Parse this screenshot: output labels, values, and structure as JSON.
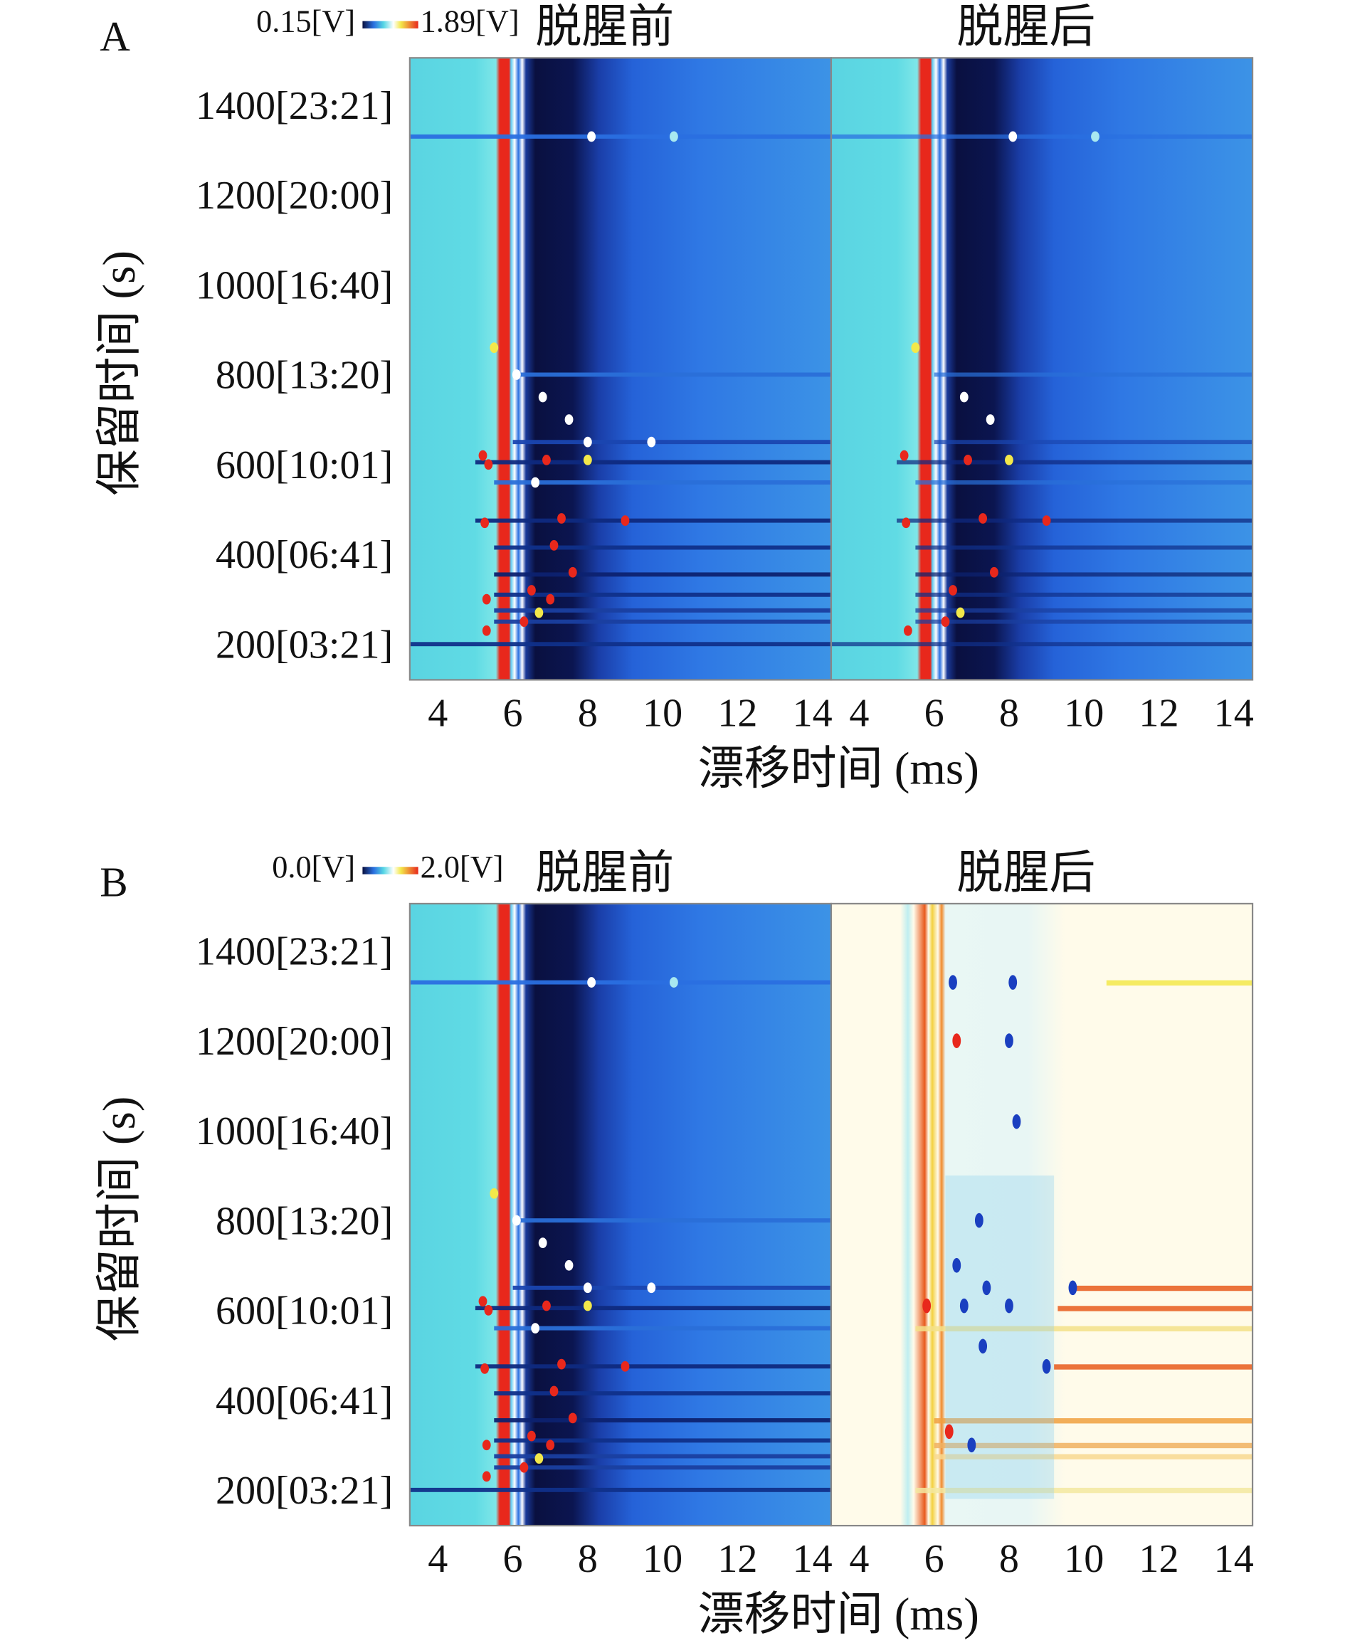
{
  "chart_data": {
    "type": "heatmap",
    "xlabel": "漂移时间 (ms)",
    "ylabel": "保留时间 (s)",
    "xlim": [
      3.25,
      14.5
    ],
    "ylim": [
      120,
      1505
    ],
    "xticks": [
      "4",
      "6",
      "8",
      "10",
      "12",
      "14"
    ],
    "yticks": [
      {
        "value": 200,
        "label": "200[03:21]"
      },
      {
        "value": 400,
        "label": "400[06:41]"
      },
      {
        "value": 600,
        "label": "600[10:01]"
      },
      {
        "value": 800,
        "label": "800[13:20]"
      },
      {
        "value": 1000,
        "label": "1000[16:40]"
      },
      {
        "value": 1200,
        "label": "1200[20:00]"
      },
      {
        "value": 1400,
        "label": "1400[23:21]"
      }
    ],
    "colors": {
      "low": "#0a0f3c",
      "mid": "#2a6fe0",
      "cyan": "#56d6e4",
      "high": "#e8281c",
      "yellow": "#f3e84a",
      "cream": "#fffbea"
    },
    "panels": [
      {
        "label": "A",
        "colorbar": {
          "min": "0.15[V]",
          "max": "1.89[V]"
        },
        "subplots": [
          {
            "title": "脱腥前",
            "mode": "spectrum",
            "intensity": 1.0
          },
          {
            "title": "脱腥后",
            "mode": "spectrum",
            "intensity": 0.7
          }
        ]
      },
      {
        "label": "B",
        "colorbar": {
          "min": "0.0[V]",
          "max": "2.0[V]"
        },
        "subplots": [
          {
            "title": "脱腥前",
            "mode": "spectrum",
            "intensity": 1.0
          },
          {
            "title": "脱腥后",
            "mode": "difference",
            "intensity": 1.0
          }
        ]
      }
    ],
    "peaks_spectrum": [
      [
        5.2,
        620,
        "#e8281c"
      ],
      [
        5.35,
        600,
        "#e8281c"
      ],
      [
        5.25,
        470,
        "#e8281c"
      ],
      [
        5.5,
        860,
        "#f3e84a"
      ],
      [
        6.1,
        800,
        "#ffffff"
      ],
      [
        6.9,
        610,
        "#e8281c"
      ],
      [
        7.3,
        480,
        "#e8281c"
      ],
      [
        7.1,
        420,
        "#e8281c"
      ],
      [
        8.0,
        610,
        "#f3e84a"
      ],
      [
        9.0,
        475,
        "#e8281c"
      ],
      [
        9.7,
        650,
        "#ffffff"
      ],
      [
        7.6,
        360,
        "#e8281c"
      ],
      [
        6.5,
        320,
        "#e8281c"
      ],
      [
        7.0,
        300,
        "#e8281c"
      ],
      [
        8.1,
        1330,
        "#ffffff"
      ],
      [
        10.3,
        1330,
        "#a8e8f0"
      ],
      [
        6.6,
        560,
        "#ffffff"
      ],
      [
        7.5,
        700,
        "#ffffff"
      ],
      [
        6.8,
        750,
        "#ffffff"
      ],
      [
        8.0,
        650,
        "#ffffff"
      ],
      [
        6.3,
        250,
        "#e8281c"
      ],
      [
        6.7,
        270,
        "#f3e84a"
      ],
      [
        5.3,
        300,
        "#e8281c"
      ],
      [
        5.3,
        230,
        "#e8281c"
      ]
    ],
    "streaks_spectrum": [
      [
        200,
        3.25,
        14.5,
        "#10308a"
      ],
      [
        605,
        5.0,
        14.5,
        "#0f2a80"
      ],
      [
        650,
        6.0,
        14.5,
        "#1a46b0"
      ],
      [
        475,
        5.0,
        14.5,
        "#0f2a80"
      ],
      [
        415,
        5.5,
        14.5,
        "#10308a"
      ],
      [
        355,
        5.5,
        14.5,
        "#0d2270"
      ],
      [
        310,
        5.5,
        14.5,
        "#10308a"
      ],
      [
        275,
        5.5,
        14.5,
        "#1a3fa0"
      ],
      [
        1330,
        3.25,
        14.5,
        "#2a6fe0"
      ],
      [
        800,
        6.0,
        14.5,
        "#2a6fd8"
      ],
      [
        560,
        5.5,
        14.5,
        "#2a6fd8"
      ],
      [
        250,
        5.5,
        14.5,
        "#1a3fa0"
      ]
    ],
    "peaks_difference": [
      [
        6.5,
        1330,
        "#1a3fc0"
      ],
      [
        8.1,
        1330,
        "#1a3fc0"
      ],
      [
        6.6,
        1200,
        "#e8281c"
      ],
      [
        8.0,
        1200,
        "#1a3fc0"
      ],
      [
        8.2,
        1020,
        "#1a3fc0"
      ],
      [
        7.2,
        800,
        "#1a3fc0"
      ],
      [
        6.6,
        700,
        "#1a3fc0"
      ],
      [
        7.4,
        650,
        "#1a3fc0"
      ],
      [
        6.8,
        610,
        "#1a3fc0"
      ],
      [
        8.0,
        610,
        "#1a3fc0"
      ],
      [
        9.0,
        475,
        "#1a3fc0"
      ],
      [
        7.3,
        520,
        "#1a3fc0"
      ],
      [
        6.4,
        330,
        "#e8281c"
      ],
      [
        7.0,
        300,
        "#1a3fc0"
      ],
      [
        9.7,
        650,
        "#1a3fc0"
      ],
      [
        5.8,
        610,
        "#e8281c"
      ]
    ],
    "streaks_difference": [
      [
        650,
        9.8,
        14.5,
        "#e85a1c"
      ],
      [
        605,
        9.3,
        14.5,
        "#e85a1c"
      ],
      [
        475,
        9.2,
        14.5,
        "#e85a1c"
      ],
      [
        355,
        6.0,
        14.5,
        "#f0a040"
      ],
      [
        1330,
        10.6,
        14.5,
        "#f3e84a"
      ],
      [
        560,
        5.5,
        14.5,
        "#f3e08a"
      ],
      [
        300,
        6.0,
        14.5,
        "#f0b060"
      ],
      [
        275,
        6.0,
        14.5,
        "#f8d890"
      ],
      [
        200,
        5.5,
        14.5,
        "#f3e8a0"
      ]
    ]
  }
}
